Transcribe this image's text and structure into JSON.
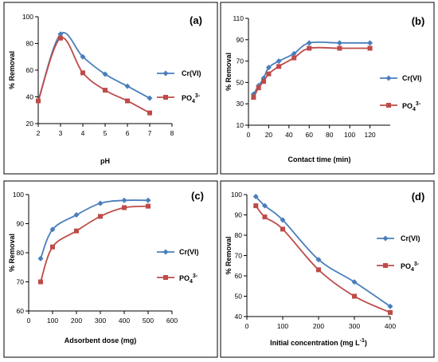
{
  "colors": {
    "cr": "#4a7ebb",
    "po4": "#be4b48"
  },
  "chart_data": [
    {
      "type": "line",
      "panel_label": "(a)",
      "xlabel": "pH",
      "ylabel": "% Removal",
      "xlim": [
        2,
        8
      ],
      "ylim": [
        20,
        100
      ],
      "xticks": [
        2,
        3,
        4,
        5,
        6,
        7,
        8
      ],
      "yticks": [
        20,
        40,
        60,
        80,
        100
      ],
      "legend_position": "right",
      "series": [
        {
          "name": "Cr(VI)",
          "sub": "",
          "sup": "",
          "color": "#4a7ebb",
          "marker": "diamond",
          "x": [
            2,
            3,
            4,
            5,
            6,
            7
          ],
          "y": [
            37,
            87,
            70,
            57,
            48,
            39
          ]
        },
        {
          "name": "PO",
          "sub": "4",
          "sup": "3-",
          "color": "#be4b48",
          "marker": "square",
          "x": [
            2,
            3,
            4,
            5,
            6,
            7
          ],
          "y": [
            37,
            84,
            58,
            45,
            37,
            28
          ]
        }
      ]
    },
    {
      "type": "line",
      "panel_label": "(b)",
      "xlabel": "Contact time (min)",
      "ylabel": "% Removal",
      "xlim": [
        0,
        140
      ],
      "ylim": [
        10,
        110
      ],
      "xticks": [
        0,
        20,
        40,
        60,
        80,
        100,
        120
      ],
      "yticks": [
        10,
        30,
        50,
        70,
        90,
        110
      ],
      "legend_position": "right",
      "series": [
        {
          "name": "Cr(VI)",
          "sub": "",
          "sup": "",
          "color": "#4a7ebb",
          "marker": "diamond",
          "x": [
            5,
            10,
            15,
            20,
            30,
            45,
            60,
            90,
            120
          ],
          "y": [
            39,
            47,
            54,
            64,
            70,
            77,
            87,
            87,
            87
          ]
        },
        {
          "name": "PO",
          "sub": "4",
          "sup": "3-",
          "color": "#be4b48",
          "marker": "square",
          "x": [
            5,
            10,
            15,
            20,
            30,
            45,
            60,
            90,
            120
          ],
          "y": [
            36,
            45,
            51,
            58,
            65,
            73,
            82,
            82,
            82
          ]
        }
      ]
    },
    {
      "type": "line",
      "panel_label": "(c)",
      "xlabel": "Adsorbent dose (mg)",
      "ylabel": "% Removal",
      "xlim": [
        0,
        600
      ],
      "ylim": [
        60,
        100
      ],
      "xticks": [
        0,
        100,
        200,
        300,
        400,
        500,
        600
      ],
      "yticks": [
        60,
        70,
        80,
        90,
        100
      ],
      "legend_position": "right",
      "series": [
        {
          "name": "Cr(VI)",
          "sub": "",
          "sup": "",
          "color": "#4a7ebb",
          "marker": "diamond",
          "x": [
            50,
            100,
            200,
            300,
            400,
            500
          ],
          "y": [
            78,
            88,
            93,
            97,
            98,
            98
          ]
        },
        {
          "name": "PO",
          "sub": "4",
          "sup": "3-",
          "color": "#be4b48",
          "marker": "square",
          "x": [
            50,
            100,
            200,
            300,
            400,
            500
          ],
          "y": [
            70,
            82,
            87.5,
            92.5,
            95.5,
            96
          ]
        }
      ]
    },
    {
      "type": "line",
      "panel_label": "(d)",
      "xlabel": "Initial concentration (mg L",
      "xlabel_sup": "-1",
      "xlabel_end": ")",
      "ylabel": "% Removal",
      "xlim": [
        0,
        400
      ],
      "ylim": [
        40,
        100
      ],
      "xticks": [
        0,
        100,
        200,
        300,
        400
      ],
      "yticks": [
        40,
        50,
        60,
        70,
        80,
        90,
        100
      ],
      "legend_position": "right",
      "series": [
        {
          "name": "Cr(VI)",
          "sub": "",
          "sup": "",
          "color": "#4a7ebb",
          "marker": "diamond",
          "x": [
            25,
            50,
            100,
            200,
            300,
            400
          ],
          "y": [
            99,
            94.5,
            87.5,
            68,
            57,
            45
          ]
        },
        {
          "name": "PO",
          "sub": "4",
          "sup": "3-",
          "color": "#be4b48",
          "marker": "square",
          "x": [
            25,
            50,
            100,
            200,
            300,
            400
          ],
          "y": [
            94.5,
            89,
            83,
            63,
            50,
            42
          ]
        }
      ]
    }
  ]
}
